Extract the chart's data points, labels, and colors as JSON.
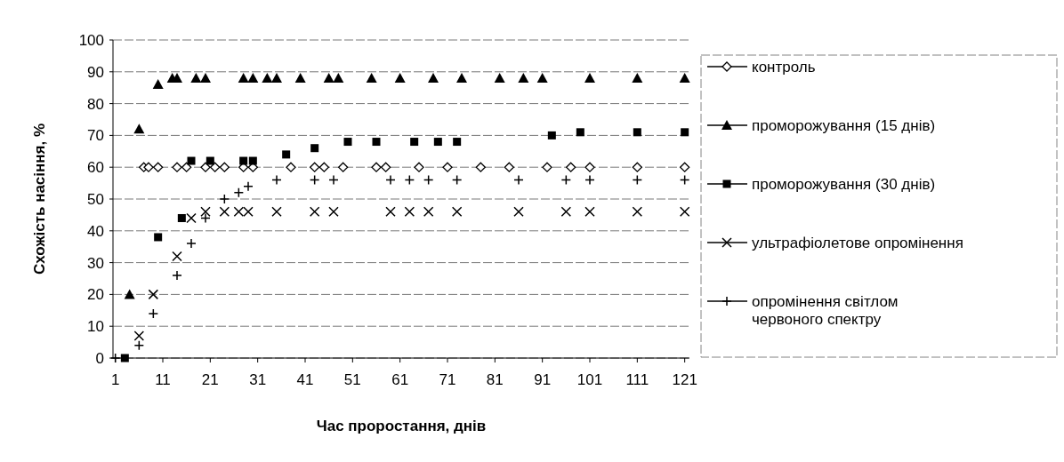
{
  "chart_data": {
    "type": "scatter",
    "xlabel": "Час проростання, днів",
    "ylabel": "Схожість насіння, %",
    "xlim": [
      0.5,
      122
    ],
    "xticks": [
      1,
      11,
      21,
      31,
      41,
      51,
      61,
      71,
      81,
      91,
      101,
      111,
      121
    ],
    "ylim": [
      0,
      100
    ],
    "yticks": [
      0,
      10,
      20,
      30,
      40,
      50,
      60,
      70,
      80,
      90,
      100
    ],
    "grid": "y",
    "legend": "right",
    "series": [
      {
        "name": "контроль",
        "color": "#000000",
        "marker": "diamond",
        "x": [
          7,
          8,
          10,
          14,
          16,
          20,
          22,
          24,
          28,
          30,
          38,
          43,
          45,
          49,
          56,
          58,
          65,
          71,
          78,
          84,
          92,
          97,
          101,
          111,
          121
        ],
        "values": [
          60,
          60,
          60,
          60,
          60,
          60,
          60,
          60,
          60,
          60,
          60,
          60,
          60,
          60,
          60,
          60,
          60,
          60,
          60,
          60,
          60,
          60,
          60,
          60,
          60
        ]
      },
      {
        "name": "проморожування (15 днів)",
        "color": "#000000",
        "marker": "triangle",
        "x": [
          4,
          6,
          10,
          13,
          14,
          18,
          20,
          28,
          30,
          33,
          35,
          40,
          46,
          48,
          55,
          61,
          68,
          74,
          82,
          87,
          91,
          101,
          111,
          121
        ],
        "values": [
          20,
          72,
          86,
          88,
          88,
          88,
          88,
          88,
          88,
          88,
          88,
          88,
          88,
          88,
          88,
          88,
          88,
          88,
          88,
          88,
          88,
          88,
          88,
          88
        ]
      },
      {
        "name": "проморожування (30 днів)",
        "color": "#000000",
        "marker": "square",
        "x": [
          3,
          10,
          15,
          17,
          21,
          28,
          30,
          37,
          43,
          50,
          56,
          64,
          69,
          73,
          93,
          99,
          111,
          121
        ],
        "values": [
          0,
          38,
          44,
          62,
          62,
          62,
          62,
          64,
          66,
          68,
          68,
          68,
          68,
          68,
          70,
          71,
          71,
          71
        ]
      },
      {
        "name": "ультрафіолетове опромінення",
        "color": "#000000",
        "marker": "x",
        "x": [
          6,
          9,
          14,
          17,
          20,
          24,
          27,
          29,
          35,
          43,
          47,
          59,
          63,
          67,
          73,
          86,
          96,
          101,
          111,
          121
        ],
        "values": [
          7,
          20,
          32,
          44,
          46,
          46,
          46,
          46,
          46,
          46,
          46,
          46,
          46,
          46,
          46,
          46,
          46,
          46,
          46,
          46
        ]
      },
      {
        "name": "опромінення світлом червоного спектру",
        "color": "#000000",
        "marker": "cross",
        "x": [
          1,
          6,
          9,
          14,
          17,
          20,
          24,
          27,
          29,
          35,
          43,
          47,
          59,
          63,
          67,
          73,
          86,
          96,
          101,
          111,
          121
        ],
        "values": [
          0,
          4,
          14,
          26,
          36,
          44,
          50,
          52,
          54,
          56,
          56,
          56,
          56,
          56,
          56,
          56,
          56,
          56,
          56,
          56,
          56
        ]
      }
    ]
  }
}
